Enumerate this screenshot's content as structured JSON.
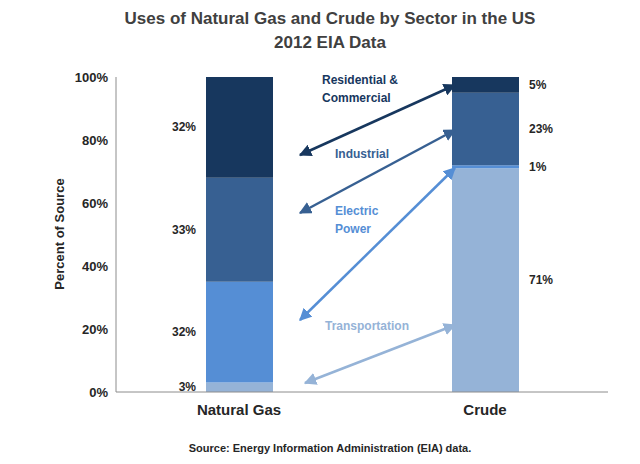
{
  "chart_data": {
    "type": "bar",
    "title": "Uses of Natural Gas and Crude by Sector in the US",
    "subtitle": "2012 EIA Data",
    "y_label": "Percent of Source",
    "annotations": [
      "Source: Energy Information Administration (EIA) data."
    ],
    "categories": [
      "Natural Gas",
      "Crude"
    ],
    "stacked": true,
    "data_labels": true,
    "grid": false,
    "ylim": [
      0,
      100
    ],
    "yticks": [
      {
        "value": 0,
        "label": "0%"
      },
      {
        "value": 20,
        "label": "20%"
      },
      {
        "value": 40,
        "label": "40%"
      },
      {
        "value": 60,
        "label": "60%"
      },
      {
        "value": 80,
        "label": "80%"
      },
      {
        "value": 100,
        "label": "100%"
      }
    ],
    "series": [
      {
        "name": "Transportation",
        "color": "#95b3d7",
        "values": [
          3,
          71
        ],
        "value_labels": [
          "3%",
          "71%"
        ]
      },
      {
        "name": "Electric Power",
        "color": "#558ed5",
        "values": [
          32,
          1
        ],
        "value_labels": [
          "32%",
          "1%"
        ]
      },
      {
        "name": "Industrial",
        "color": "#376092",
        "values": [
          33,
          23
        ],
        "value_labels": [
          "33%",
          "23%"
        ]
      },
      {
        "name": "Residential & Commercial",
        "color": "#17375e",
        "values": [
          32,
          5
        ],
        "value_labels": [
          "32%",
          "5%"
        ]
      }
    ]
  }
}
